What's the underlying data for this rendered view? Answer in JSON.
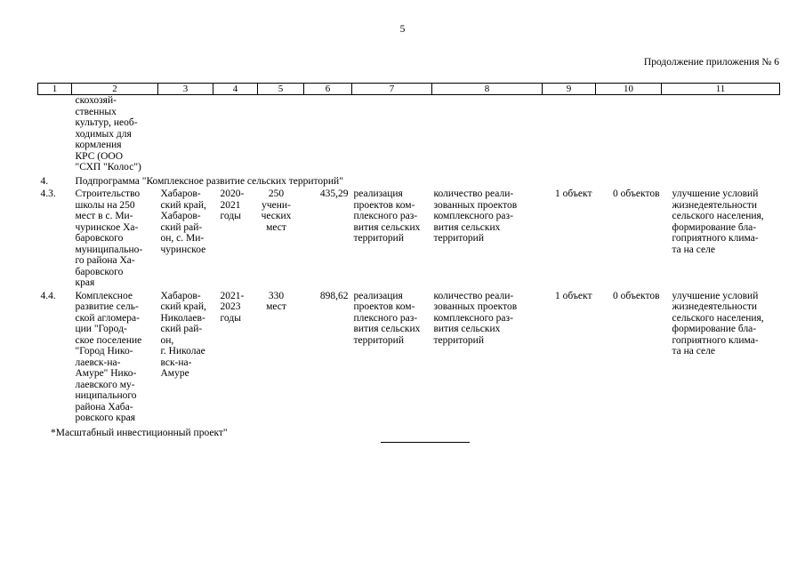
{
  "page_number": "5",
  "appendix_note": "Продолжение приложения № 6",
  "table": {
    "header": [
      "1",
      "2",
      "3",
      "4",
      "5",
      "6",
      "7",
      "8",
      "9",
      "10",
      "11"
    ],
    "carryover": {
      "c2": "скохозяй-\nственных\nкультур, необ-\nходимых для\nкормления\nКРС (ООО\n\"СХП \"Колос\")"
    },
    "subprogram": {
      "num": "4.",
      "title": "Подпрограмма \"Комплексное развитие сельских территорий\""
    },
    "rows": [
      {
        "num": "4.3.",
        "name": "Строительство\nшколы на 250\nмест в с. Ми-\nчуринское Ха-\nбаровского\nмуниципально-\nго района Ха-\nбаровского\nкрая",
        "location": "Хабаров-\nский край,\nХабаров-\nский рай-\nон, с. Ми-\nчуринское",
        "years": "2020-\n2021\nгоды",
        "capacity": "250\nучени-\nческих\nмест",
        "amount": "435,29",
        "goal": "реализация\nпроектов ком-\nплексного раз-\nвития сельских\nтерриторий",
        "indicator": "количество реали-\nзованных проектов\nкомплексного раз-\nвития сельских\nтерриторий",
        "plan": "1 объект",
        "fact": "0 объектов",
        "effect": "улучшение условий\nжизнедеятельности\nсельского населения,\nформирование бла-\nгоприятного клима-\nта на селе"
      },
      {
        "num": "4.4.",
        "name": "Комплексное\nразвитие сель-\nской агломера-\nции \"Город-\nское поселение\n\"Город Нико-\nлаевск-на-\nАмуре\" Нико-\nлаевского му-\nниципального\nрайона Хаба-\nровского края",
        "location": "Хабаров-\nский край,\nНиколаев-\nский рай-\nон,\nг. Николае\nвск-на-\nАмуре",
        "years": "2021-\n2023\nгоды",
        "capacity": "330\nмест",
        "amount": "898,62",
        "goal": "реализация\nпроектов ком-\nплексного раз-\nвития сельских\nтерриторий",
        "indicator": "количество реали-\nзованных проектов\nкомплексного раз-\nвития сельских\nтерриторий",
        "plan": "1 объект",
        "fact": "0 объектов",
        "effect": "улучшение условий\nжизнедеятельности\nсельского населения,\nформирование бла-\nгоприятного клима-\nта на селе"
      }
    ]
  },
  "footnote": "*Масштабный инвестиционный проект\""
}
